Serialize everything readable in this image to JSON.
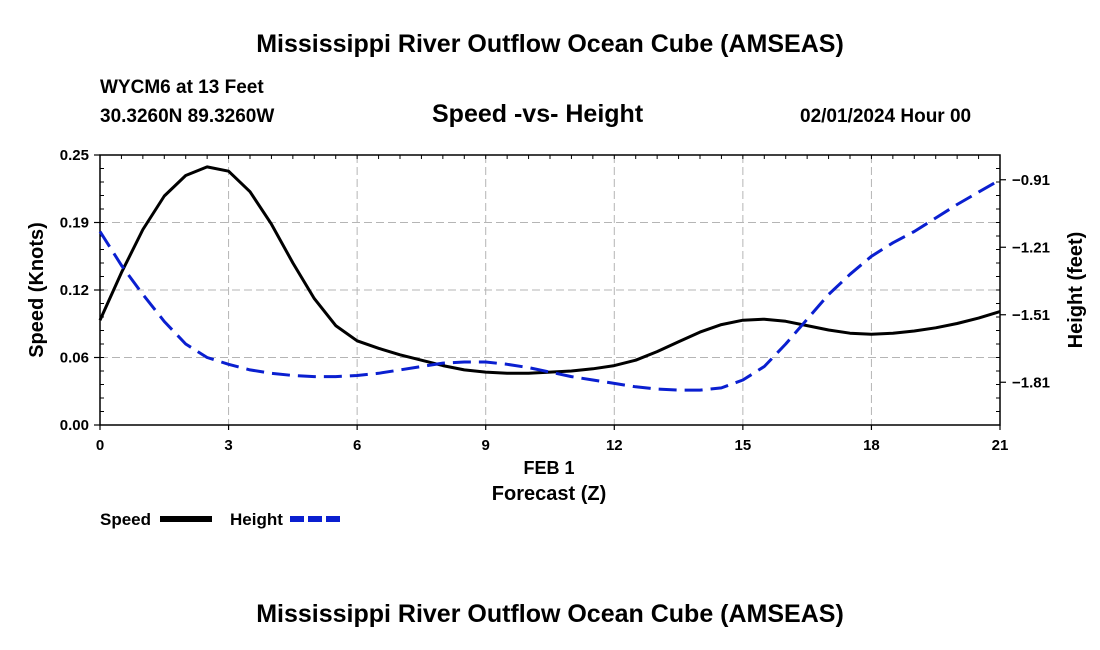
{
  "header": {
    "title": "Mississippi River Outflow Ocean Cube (AMSEAS)",
    "station": "WYCM6 at 13 Feet",
    "coords": "30.3260N  89.3260W",
    "datetime": "02/01/2024 Hour 00"
  },
  "footer": {
    "title": "Mississippi River Outflow Ocean Cube (AMSEAS)"
  },
  "chart_data": {
    "type": "line",
    "title": "Speed -vs- Height",
    "xlabel": "Forecast (Z)",
    "xlabel_date": "FEB 1",
    "ylabel_left": "Speed (Knots)",
    "ylabel_right": "Height (feet)",
    "xlim": [
      0,
      21
    ],
    "ylim_left": [
      0,
      0.25
    ],
    "ylim_right": [
      -2.0,
      -0.8
    ],
    "x_ticks": [
      0,
      3,
      6,
      9,
      12,
      15,
      18,
      21
    ],
    "x_tick_labels": [
      "0",
      "3",
      "6",
      "9",
      "12",
      "15",
      "18",
      "21"
    ],
    "left_ticks": [
      0,
      0.0625,
      0.125,
      0.1875,
      0.25
    ],
    "left_tick_labels": [
      "0.00",
      "0.06",
      "0.12",
      "0.19",
      "0.25"
    ],
    "right_ticks": [
      -1.81,
      -1.51,
      -1.21,
      -0.91
    ],
    "right_tick_labels": [
      "−1.81",
      "−1.51",
      "−1.21",
      "−0.91"
    ],
    "grid": true,
    "legend_position": "bottom-left",
    "series": [
      {
        "name": "Speed",
        "axis": "left",
        "color": "#000000",
        "dash": "solid",
        "x": [
          0,
          0.5,
          1,
          1.5,
          2,
          2.5,
          3,
          3.5,
          4,
          4.5,
          5,
          5.5,
          6,
          6.5,
          7,
          7.5,
          8,
          8.5,
          9,
          9.5,
          10,
          10.5,
          11,
          11.5,
          12,
          12.5,
          13,
          13.5,
          14,
          14.5,
          15,
          15.5,
          16,
          16.5,
          17,
          17.5,
          18,
          18.5,
          19,
          19.5,
          20,
          20.5,
          21
        ],
        "values": [
          0.097,
          0.141,
          0.181,
          0.212,
          0.231,
          0.239,
          0.235,
          0.216,
          0.186,
          0.15,
          0.117,
          0.092,
          0.078,
          0.071,
          0.065,
          0.06,
          0.055,
          0.051,
          0.049,
          0.048,
          0.048,
          0.049,
          0.05,
          0.052,
          0.055,
          0.06,
          0.068,
          0.077,
          0.086,
          0.093,
          0.097,
          0.098,
          0.096,
          0.092,
          0.088,
          0.085,
          0.084,
          0.085,
          0.087,
          0.09,
          0.094,
          0.099,
          0.105
        ]
      },
      {
        "name": "Height",
        "axis": "right",
        "color": "#0a1fd0",
        "dash": "dashed",
        "x": [
          0,
          0.5,
          1,
          1.5,
          2,
          2.5,
          3,
          3.5,
          4,
          4.5,
          5,
          5.5,
          6,
          6.5,
          7,
          7.5,
          8,
          8.5,
          9,
          9.5,
          10,
          10.5,
          11,
          11.5,
          12,
          12.5,
          13,
          13.5,
          14,
          14.5,
          15,
          15.5,
          16,
          16.5,
          17,
          17.5,
          18,
          18.5,
          19,
          19.5,
          20,
          20.5,
          21
        ],
        "values": [
          -1.14,
          -1.29,
          -1.42,
          -1.54,
          -1.64,
          -1.7,
          -1.73,
          -1.755,
          -1.77,
          -1.78,
          -1.785,
          -1.785,
          -1.78,
          -1.77,
          -1.755,
          -1.74,
          -1.725,
          -1.72,
          -1.72,
          -1.73,
          -1.745,
          -1.765,
          -1.785,
          -1.8,
          -1.815,
          -1.83,
          -1.84,
          -1.845,
          -1.845,
          -1.835,
          -1.8,
          -1.74,
          -1.64,
          -1.53,
          -1.42,
          -1.33,
          -1.25,
          -1.19,
          -1.14,
          -1.08,
          -1.02,
          -0.965,
          -0.91
        ]
      }
    ]
  }
}
